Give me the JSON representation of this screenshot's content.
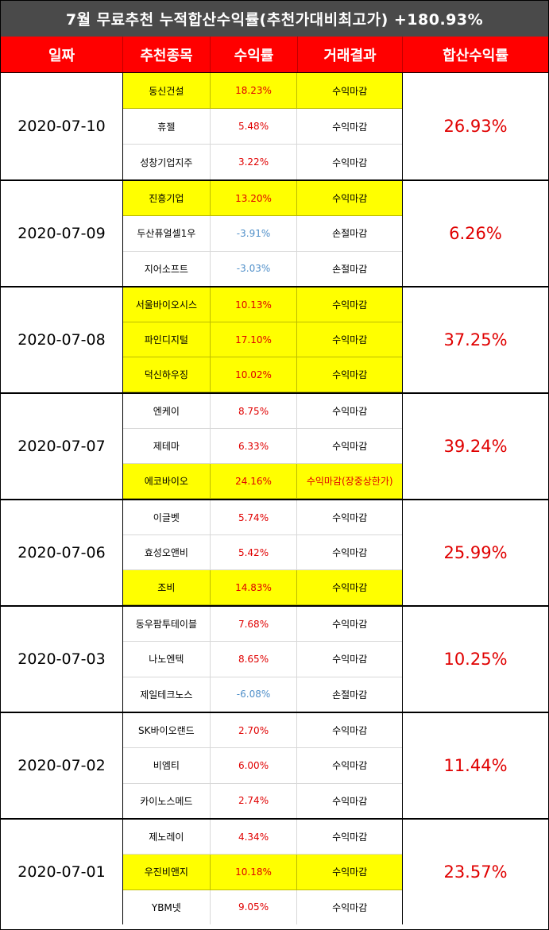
{
  "title": "7월 무료추천 누적합산수익률(추천가대비최고가) +180.93%",
  "headers": [
    "일짜",
    "추천종목",
    "수익률",
    "거래결과",
    "합산수익률"
  ],
  "groups": [
    {
      "date": "2020-07-10",
      "total": "26.93%",
      "rows": [
        {
          "name": "동신건설",
          "ret": "18.23%",
          "result": "수익마감",
          "hl": true,
          "neg": false,
          "resred": false
        },
        {
          "name": "휴젤",
          "ret": "5.48%",
          "result": "수익마감",
          "hl": false,
          "neg": false,
          "resred": false
        },
        {
          "name": "성창기업지주",
          "ret": "3.22%",
          "result": "수익마감",
          "hl": false,
          "neg": false,
          "resred": false
        }
      ]
    },
    {
      "date": "2020-07-09",
      "total": "6.26%",
      "rows": [
        {
          "name": "진흥기업",
          "ret": "13.20%",
          "result": "수익마감",
          "hl": true,
          "neg": false,
          "resred": false
        },
        {
          "name": "두산퓨얼셀1우",
          "ret": "-3.91%",
          "result": "손절마감",
          "hl": false,
          "neg": true,
          "resred": false
        },
        {
          "name": "지어소프트",
          "ret": "-3.03%",
          "result": "손절마감",
          "hl": false,
          "neg": true,
          "resred": false
        }
      ]
    },
    {
      "date": "2020-07-08",
      "total": "37.25%",
      "rows": [
        {
          "name": "서울바이오시스",
          "ret": "10.13%",
          "result": "수익마감",
          "hl": true,
          "neg": false,
          "resred": false
        },
        {
          "name": "파인디지털",
          "ret": "17.10%",
          "result": "수익마감",
          "hl": true,
          "neg": false,
          "resred": false
        },
        {
          "name": "덕신하우징",
          "ret": "10.02%",
          "result": "수익마감",
          "hl": true,
          "neg": false,
          "resred": false
        }
      ]
    },
    {
      "date": "2020-07-07",
      "total": "39.24%",
      "rows": [
        {
          "name": "엔케이",
          "ret": "8.75%",
          "result": "수익마감",
          "hl": false,
          "neg": false,
          "resred": false
        },
        {
          "name": "제테마",
          "ret": "6.33%",
          "result": "수익마감",
          "hl": false,
          "neg": false,
          "resred": false
        },
        {
          "name": "에코바이오",
          "ret": "24.16%",
          "result": "수익마감(장중상한가)",
          "hl": true,
          "neg": false,
          "resred": true
        }
      ]
    },
    {
      "date": "2020-07-06",
      "total": "25.99%",
      "rows": [
        {
          "name": "이글벳",
          "ret": "5.74%",
          "result": "수익마감",
          "hl": false,
          "neg": false,
          "resred": false
        },
        {
          "name": "효성오앤비",
          "ret": "5.42%",
          "result": "수익마감",
          "hl": false,
          "neg": false,
          "resred": false
        },
        {
          "name": "조비",
          "ret": "14.83%",
          "result": "수익마감",
          "hl": true,
          "neg": false,
          "resred": false
        }
      ]
    },
    {
      "date": "2020-07-03",
      "total": "10.25%",
      "rows": [
        {
          "name": "동우팜투테이블",
          "ret": "7.68%",
          "result": "수익마감",
          "hl": false,
          "neg": false,
          "resred": false
        },
        {
          "name": "나노엔텍",
          "ret": "8.65%",
          "result": "수익마감",
          "hl": false,
          "neg": false,
          "resred": false
        },
        {
          "name": "제일테크노스",
          "ret": "-6.08%",
          "result": "손절마감",
          "hl": false,
          "neg": true,
          "resred": false
        }
      ]
    },
    {
      "date": "2020-07-02",
      "total": "11.44%",
      "rows": [
        {
          "name": "SK바이오랜드",
          "ret": "2.70%",
          "result": "수익마감",
          "hl": false,
          "neg": false,
          "resred": false
        },
        {
          "name": "비엠티",
          "ret": "6.00%",
          "result": "수익마감",
          "hl": false,
          "neg": false,
          "resred": false
        },
        {
          "name": "카이노스메드",
          "ret": "2.74%",
          "result": "수익마감",
          "hl": false,
          "neg": false,
          "resred": false
        }
      ]
    },
    {
      "date": "2020-07-01",
      "total": "23.57%",
      "rows": [
        {
          "name": "제노레이",
          "ret": "4.34%",
          "result": "수익마감",
          "hl": false,
          "neg": false,
          "resred": false
        },
        {
          "name": "우진비앤지",
          "ret": "10.18%",
          "result": "수익마감",
          "hl": true,
          "neg": false,
          "resred": false
        },
        {
          "name": "YBM넷",
          "ret": "9.05%",
          "result": "수익마감",
          "hl": false,
          "neg": false,
          "resred": false
        }
      ]
    }
  ],
  "colors": {
    "title_bg": "#4a4a4a",
    "header_bg": "#ff0000",
    "highlight": "#ffff00",
    "positive": "#e00000",
    "negative": "#4f8fc9"
  }
}
